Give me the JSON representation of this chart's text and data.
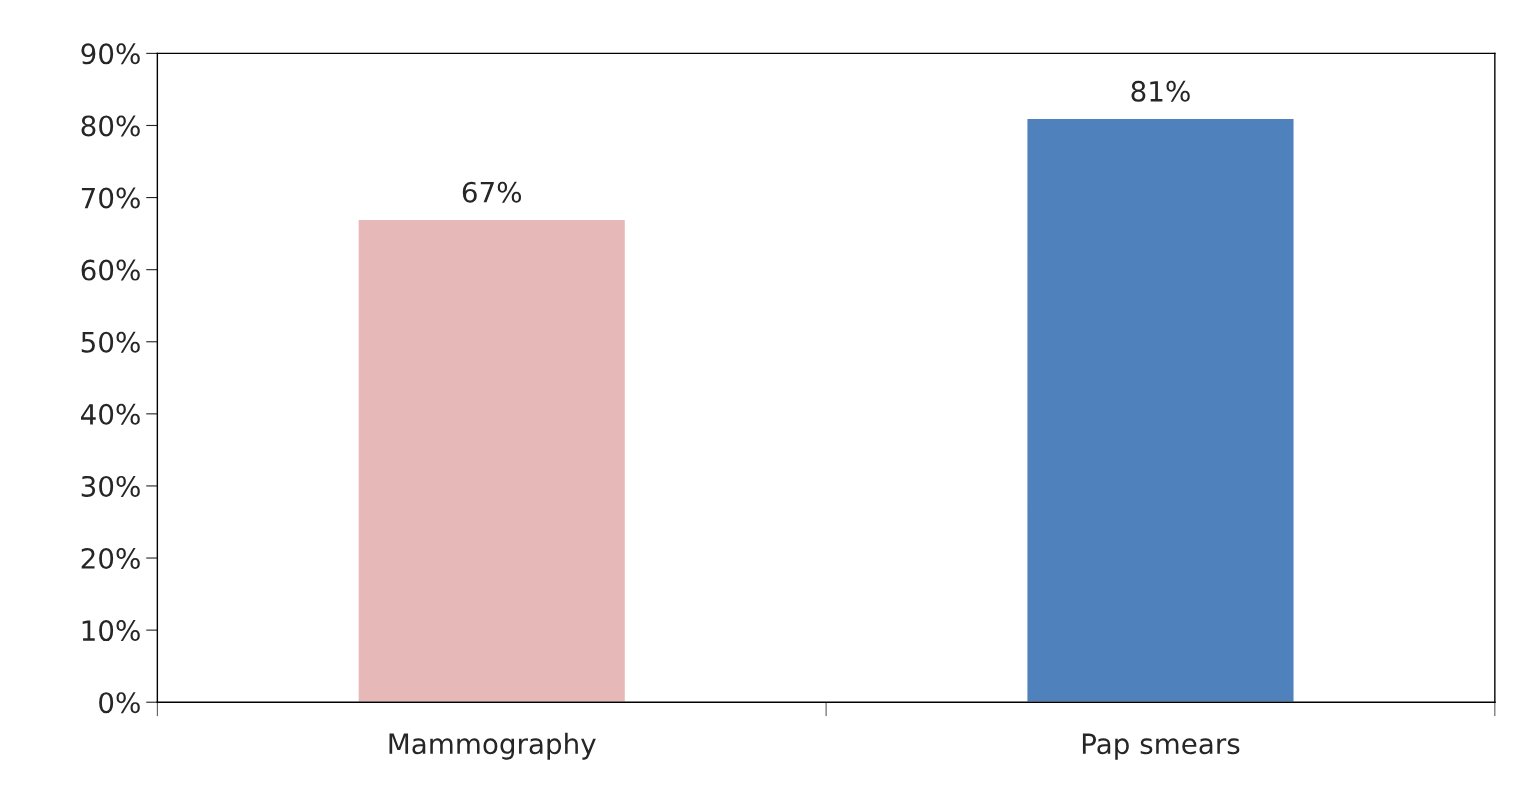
{
  "chart_data": {
    "type": "bar",
    "categories": [
      "Mammography",
      "Pap smears"
    ],
    "values": [
      67,
      81
    ],
    "colors": [
      "#e6b8b7",
      "#4f81bd"
    ],
    "value_labels": [
      "67%",
      "81%"
    ],
    "ylim": [
      0,
      90
    ],
    "yticks": [
      {
        "value": 0,
        "label": "0%"
      },
      {
        "value": 10,
        "label": "10%"
      },
      {
        "value": 20,
        "label": "20%"
      },
      {
        "value": 30,
        "label": "30%"
      },
      {
        "value": 40,
        "label": "40%"
      },
      {
        "value": 50,
        "label": "50%"
      },
      {
        "value": 60,
        "label": "60%"
      },
      {
        "value": 70,
        "label": "70%"
      },
      {
        "value": 80,
        "label": "80%"
      },
      {
        "value": 90,
        "label": "90%"
      }
    ],
    "grid": false,
    "legend": false
  }
}
